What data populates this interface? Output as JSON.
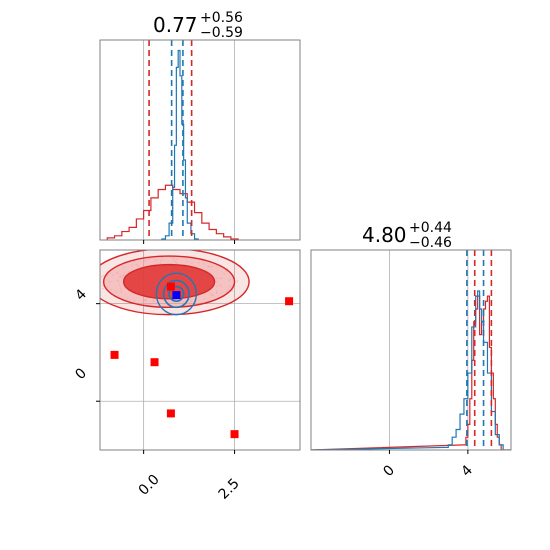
{
  "colors": {
    "red": "#d62728",
    "red_fill_dark": "#e03030",
    "red_fill_light": "#f0a0a0",
    "blue": "#1f77b4",
    "marker_red": "#ff0000",
    "marker_blue": "#0000ff",
    "grid": "#b0b0b0",
    "frame": "#808080"
  },
  "chart_data": [
    {
      "type": "histogram",
      "panel": "top-left",
      "title": {
        "value": "0.77",
        "plus": "+0.56",
        "minus": "−0.59"
      },
      "xlim": [
        -1.2,
        4.3
      ],
      "grid": true,
      "quantile_lines": {
        "red": [
          0.15,
          1.32
        ],
        "blue": [
          0.77,
          1.08
        ]
      },
      "series": [
        {
          "color": "red",
          "x": [
            -1.0,
            -0.8,
            -0.6,
            -0.4,
            -0.2,
            0.0,
            0.2,
            0.4,
            0.6,
            0.8,
            1.0,
            1.2,
            1.4,
            1.6,
            1.8,
            2.0,
            2.2,
            2.4
          ],
          "values": [
            0.01,
            0.02,
            0.04,
            0.06,
            0.1,
            0.14,
            0.2,
            0.24,
            0.26,
            0.24,
            0.22,
            0.18,
            0.13,
            0.08,
            0.05,
            0.03,
            0.015,
            0.005
          ]
        },
        {
          "color": "blue",
          "x": [
            0.5,
            0.6,
            0.7,
            0.8,
            0.85,
            0.9,
            0.95,
            1.0,
            1.05,
            1.1,
            1.15,
            1.2,
            1.3,
            1.4
          ],
          "values": [
            0.005,
            0.02,
            0.08,
            0.25,
            0.45,
            0.82,
            0.9,
            0.78,
            0.55,
            0.38,
            0.2,
            0.08,
            0.03,
            0.005
          ]
        }
      ]
    },
    {
      "type": "scatter",
      "panel": "bottom-left",
      "xlim": [
        -1.2,
        4.3
      ],
      "ylim": [
        -2.0,
        6.2
      ],
      "xticks": [
        "0.0",
        "2.5"
      ],
      "yticks": [
        "0",
        "4"
      ],
      "grid": true,
      "red_contour_center": [
        0.7,
        4.9
      ],
      "blue_contour_center": [
        0.9,
        4.4
      ],
      "points_red": [
        {
          "x": 0.75,
          "y": 4.7
        },
        {
          "x": 4.0,
          "y": 4.1
        },
        {
          "x": -0.8,
          "y": 1.9
        },
        {
          "x": 0.3,
          "y": 1.6
        },
        {
          "x": 0.75,
          "y": -0.5
        },
        {
          "x": 2.5,
          "y": -1.35
        }
      ],
      "points_blue": [
        {
          "x": 0.9,
          "y": 4.35
        }
      ]
    },
    {
      "type": "histogram",
      "panel": "bottom-right",
      "title": {
        "value": "4.80",
        "plus": "+0.44",
        "minus": "−0.46"
      },
      "xlim": [
        -4.0,
        6.2
      ],
      "xticks": [
        "0",
        "4"
      ],
      "grid": true,
      "quantile_lines": {
        "red": [
          4.35,
          5.2
        ],
        "blue": [
          3.95,
          4.8
        ]
      },
      "series": [
        {
          "color": "red",
          "x": [
            3.8,
            3.9,
            4.0,
            4.1,
            4.2,
            4.3,
            4.4,
            4.5,
            4.6,
            4.7,
            4.8,
            4.9,
            5.0,
            5.1,
            5.2,
            5.3,
            5.4,
            5.5,
            5.6
          ],
          "values": [
            0.02,
            0.05,
            0.1,
            0.2,
            0.35,
            0.5,
            0.55,
            0.6,
            0.45,
            0.5,
            0.55,
            0.58,
            0.6,
            0.4,
            0.3,
            0.2,
            0.1,
            0.05,
            0.02
          ]
        },
        {
          "color": "blue",
          "x": [
            2.8,
            3.0,
            3.2,
            3.4,
            3.6,
            3.8,
            4.0,
            4.2,
            4.4,
            4.5,
            4.6,
            4.7,
            4.8,
            5.0,
            5.2,
            5.4,
            5.6
          ],
          "values": [
            0.01,
            0.02,
            0.05,
            0.08,
            0.14,
            0.2,
            0.3,
            0.48,
            0.6,
            0.62,
            0.55,
            0.5,
            0.42,
            0.3,
            0.15,
            0.06,
            0.02
          ]
        }
      ]
    }
  ]
}
